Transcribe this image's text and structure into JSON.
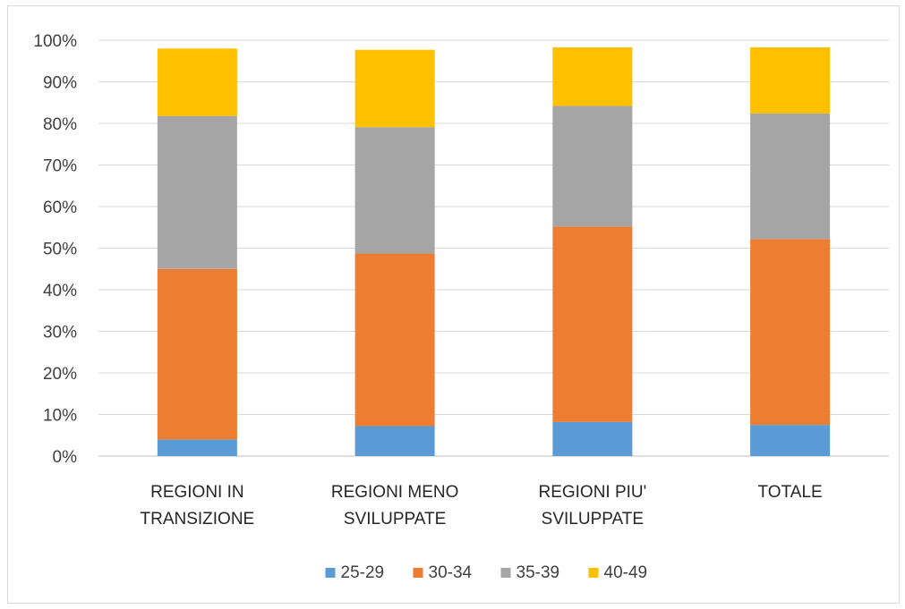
{
  "chart_data": {
    "type": "bar",
    "stacked": true,
    "categories": [
      [
        "REGIONI IN",
        "TRANSIZIONE"
      ],
      [
        "REGIONI MENO",
        "SVILUPPATE"
      ],
      [
        "REGIONI PIU'",
        "SVILUPPATE"
      ],
      [
        "TOTALE"
      ]
    ],
    "series": [
      {
        "name": "25-29",
        "color": "#5b9bd5",
        "values": [
          0.04,
          0.072,
          0.082,
          0.075
        ]
      },
      {
        "name": "30-34",
        "color": "#ed7d31",
        "values": [
          0.41,
          0.415,
          0.47,
          0.447
        ]
      },
      {
        "name": "35-39",
        "color": "#a5a5a5",
        "values": [
          0.368,
          0.304,
          0.29,
          0.302
        ]
      },
      {
        "name": "40-49",
        "color": "#ffc000",
        "values": [
          0.162,
          0.186,
          0.141,
          0.159
        ]
      }
    ],
    "y_ticks": [
      "0%",
      "10%",
      "20%",
      "30%",
      "40%",
      "50%",
      "60%",
      "70%",
      "80%",
      "90%",
      "100%"
    ],
    "ylim": [
      0,
      1
    ],
    "grid": true,
    "legend_position": "bottom"
  }
}
